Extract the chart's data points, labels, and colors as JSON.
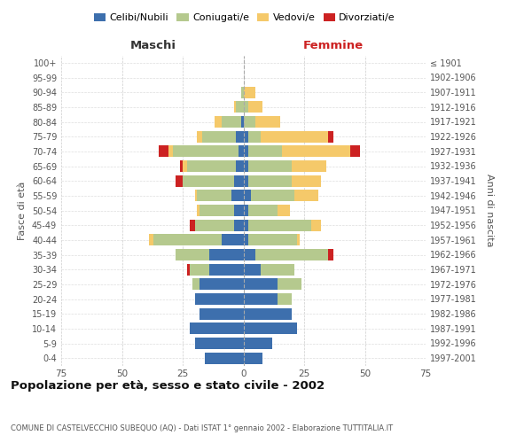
{
  "age_groups": [
    "0-4",
    "5-9",
    "10-14",
    "15-19",
    "20-24",
    "25-29",
    "30-34",
    "35-39",
    "40-44",
    "45-49",
    "50-54",
    "55-59",
    "60-64",
    "65-69",
    "70-74",
    "75-79",
    "80-84",
    "85-89",
    "90-94",
    "95-99",
    "100+"
  ],
  "birth_years": [
    "1997-2001",
    "1992-1996",
    "1987-1991",
    "1982-1986",
    "1977-1981",
    "1972-1976",
    "1967-1971",
    "1962-1966",
    "1957-1961",
    "1952-1956",
    "1947-1951",
    "1942-1946",
    "1937-1941",
    "1932-1936",
    "1927-1931",
    "1922-1926",
    "1917-1921",
    "1912-1916",
    "1907-1911",
    "1902-1906",
    "≤ 1901"
  ],
  "maschi": {
    "celibi": [
      16,
      20,
      22,
      18,
      20,
      18,
      14,
      14,
      9,
      4,
      4,
      5,
      4,
      3,
      2,
      3,
      1,
      0,
      0,
      0,
      0
    ],
    "coniugati": [
      0,
      0,
      0,
      0,
      0,
      3,
      8,
      14,
      28,
      16,
      14,
      14,
      21,
      20,
      27,
      14,
      8,
      3,
      1,
      0,
      0
    ],
    "vedovi": [
      0,
      0,
      0,
      0,
      0,
      0,
      0,
      0,
      2,
      0,
      1,
      1,
      0,
      2,
      2,
      2,
      3,
      1,
      0,
      0,
      0
    ],
    "divorziati": [
      0,
      0,
      0,
      0,
      0,
      0,
      1,
      0,
      0,
      2,
      0,
      0,
      3,
      1,
      4,
      0,
      0,
      0,
      0,
      0,
      0
    ]
  },
  "femmine": {
    "nubili": [
      8,
      12,
      22,
      20,
      14,
      14,
      7,
      5,
      2,
      2,
      2,
      3,
      2,
      2,
      2,
      2,
      0,
      0,
      0,
      0,
      0
    ],
    "coniugate": [
      0,
      0,
      0,
      0,
      6,
      10,
      14,
      30,
      20,
      26,
      12,
      18,
      18,
      18,
      14,
      5,
      5,
      2,
      0,
      0,
      0
    ],
    "vedove": [
      0,
      0,
      0,
      0,
      0,
      0,
      0,
      0,
      1,
      4,
      5,
      10,
      12,
      14,
      28,
      28,
      10,
      6,
      5,
      0,
      0
    ],
    "divorziate": [
      0,
      0,
      0,
      0,
      0,
      0,
      0,
      2,
      0,
      0,
      0,
      0,
      0,
      0,
      4,
      2,
      0,
      0,
      0,
      0,
      0
    ]
  },
  "color_celibi": "#3d6fad",
  "color_coniugati": "#b5c98e",
  "color_vedovi": "#f5c96a",
  "color_divorziati": "#cc2222",
  "xlim": 75,
  "title": "Popolazione per età, sesso e stato civile - 2002",
  "subtitle": "COMUNE DI CASTELVECCHIO SUBEQUO (AQ) - Dati ISTAT 1° gennaio 2002 - Elaborazione TUTTITALIA.IT",
  "ylabel_left": "Fasce di età",
  "ylabel_right": "Anni di nascita",
  "xlabel_left": "Maschi",
  "xlabel_right": "Femmine",
  "legend_labels": [
    "Celibi/Nubili",
    "Coniugati/e",
    "Vedovi/e",
    "Divorziati/e"
  ]
}
